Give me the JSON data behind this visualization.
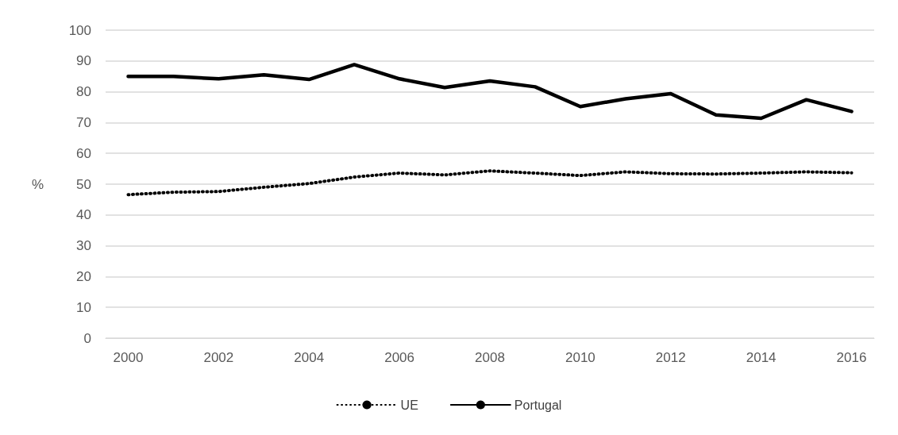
{
  "chart_data": {
    "type": "line",
    "ylabel": "%",
    "categories": [
      "2000",
      null,
      "2002",
      null,
      "2004",
      null,
      "2006",
      null,
      "2008",
      null,
      "2010",
      null,
      "2012",
      null,
      "2014",
      null,
      "2016"
    ],
    "ylim": [
      0,
      100
    ],
    "yticks": [
      0,
      10,
      20,
      30,
      40,
      50,
      60,
      70,
      80,
      90,
      100
    ],
    "grid": "y",
    "legend": "bottom",
    "marker": "none",
    "series": [
      {
        "name": "UE",
        "color": "#000000",
        "line_style": "dotted",
        "values": [
          46.6,
          47.4,
          47.6,
          49,
          50.2,
          52.3,
          53.6,
          53,
          54.3,
          53.6,
          52.8,
          54,
          53.4,
          53.3,
          53.6,
          54,
          53.7
        ]
      },
      {
        "name": "Portugal",
        "color": "#000000",
        "line_style": "solid",
        "values": [
          85,
          85,
          84.2,
          85.5,
          84,
          88.8,
          84.2,
          81.4,
          83.5,
          81.6,
          75.2,
          77.7,
          79.4,
          72.5,
          71.4,
          77.4,
          73.6
        ]
      }
    ]
  }
}
